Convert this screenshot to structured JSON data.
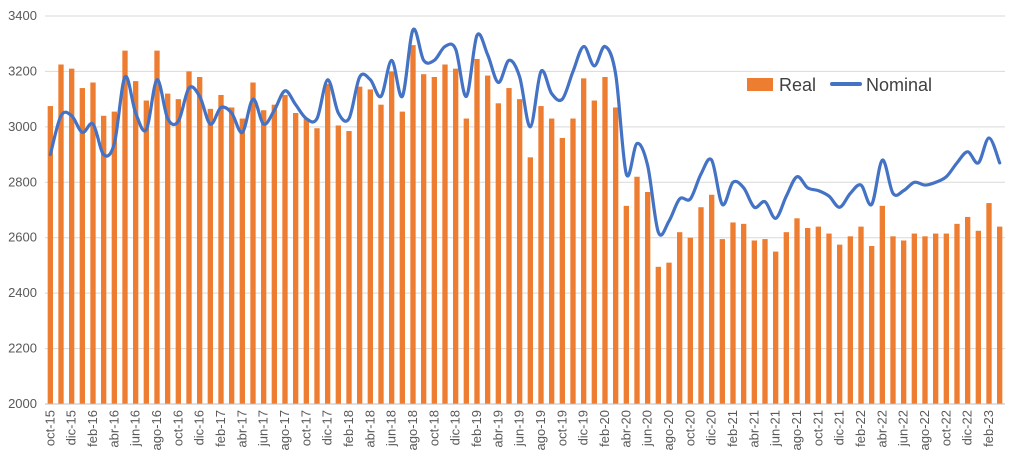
{
  "chart_data": {
    "type": "bar",
    "title": "",
    "xlabel": "",
    "ylabel": "",
    "ylim": [
      2000,
      3400
    ],
    "yticks": [
      2000,
      2200,
      2400,
      2600,
      2800,
      3000,
      3200,
      3400
    ],
    "grid": "horizontal",
    "legend": {
      "placement": "top-right",
      "entries": [
        "Real",
        "Nominal"
      ]
    },
    "colors": {
      "Real": "#ED7D31",
      "Nominal": "#4472C4"
    },
    "categories": [
      "oct-15",
      "nov-15",
      "dic-15",
      "ene-16",
      "feb-16",
      "mar-16",
      "abr-16",
      "may-16",
      "jun-16",
      "jul-16",
      "ago-16",
      "sep-16",
      "oct-16",
      "nov-16",
      "dic-16",
      "ene-17",
      "feb-17",
      "mar-17",
      "abr-17",
      "may-17",
      "jun-17",
      "jul-17",
      "ago-17",
      "sep-17",
      "oct-17",
      "nov-17",
      "dic-17",
      "ene-18",
      "feb-18",
      "mar-18",
      "abr-18",
      "may-18",
      "jun-18",
      "jul-18",
      "ago-18",
      "sep-18",
      "oct-18",
      "nov-18",
      "dic-18",
      "ene-19",
      "feb-19",
      "mar-19",
      "abr-19",
      "may-19",
      "jun-19",
      "jul-19",
      "ago-19",
      "sep-19",
      "oct-19",
      "nov-19",
      "dic-19",
      "ene-20",
      "feb-20",
      "mar-20",
      "abr-20",
      "may-20",
      "jun-20",
      "jul-20",
      "ago-20",
      "sep-20",
      "oct-20",
      "nov-20",
      "dic-20",
      "ene-21",
      "feb-21",
      "mar-21",
      "abr-21",
      "may-21",
      "jun-21",
      "jul-21",
      "ago-21",
      "sep-21",
      "oct-21",
      "nov-21",
      "dic-21",
      "ene-22",
      "feb-22",
      "mar-22",
      "abr-22",
      "may-22",
      "jun-22",
      "jul-22",
      "ago-22",
      "sep-22",
      "oct-22",
      "nov-22",
      "dic-22",
      "ene-23",
      "feb-23",
      "mar-23"
    ],
    "tick_labels_every": 2,
    "series": [
      {
        "name": "Real",
        "kind": "bar",
        "values": [
          3075,
          3225,
          3210,
          3140,
          3160,
          3040,
          3055,
          3275,
          3165,
          3095,
          3275,
          3120,
          3100,
          3200,
          3180,
          3065,
          3115,
          3070,
          3030,
          3160,
          3060,
          3080,
          3115,
          3050,
          3030,
          2995,
          3155,
          3005,
          2985,
          3145,
          3135,
          3080,
          3200,
          3055,
          3295,
          3190,
          3180,
          3225,
          3210,
          3030,
          3245,
          3185,
          3085,
          3140,
          3100,
          2890,
          3075,
          3030,
          2960,
          3030,
          3175,
          3095,
          3180,
          3070,
          2715,
          2820,
          2765,
          2495,
          2510,
          2620,
          2600,
          2710,
          2755,
          2595,
          2655,
          2650,
          2590,
          2595,
          2550,
          2620,
          2670,
          2635,
          2640,
          2615,
          2575,
          2605,
          2640,
          2570,
          2715,
          2605,
          2590,
          2615,
          2605,
          2615,
          2615,
          2650,
          2675,
          2625,
          2725,
          2640
        ]
      },
      {
        "name": "Nominal",
        "kind": "line",
        "values": [
          2900,
          3040,
          3040,
          2980,
          3010,
          2900,
          2940,
          3180,
          3050,
          2990,
          3170,
          3030,
          3020,
          3140,
          3110,
          3010,
          3070,
          3050,
          2980,
          3100,
          3010,
          3060,
          3130,
          3080,
          3030,
          3030,
          3170,
          3050,
          3030,
          3180,
          3170,
          3110,
          3240,
          3110,
          3350,
          3240,
          3240,
          3290,
          3280,
          3110,
          3330,
          3260,
          3160,
          3240,
          3180,
          3000,
          3200,
          3120,
          3100,
          3200,
          3290,
          3220,
          3290,
          3190,
          2830,
          2940,
          2860,
          2620,
          2660,
          2740,
          2740,
          2830,
          2880,
          2720,
          2800,
          2780,
          2710,
          2730,
          2670,
          2750,
          2820,
          2780,
          2770,
          2750,
          2710,
          2760,
          2790,
          2720,
          2880,
          2760,
          2770,
          2800,
          2790,
          2800,
          2820,
          2870,
          2910,
          2870,
          2960,
          2870
        ]
      }
    ]
  }
}
